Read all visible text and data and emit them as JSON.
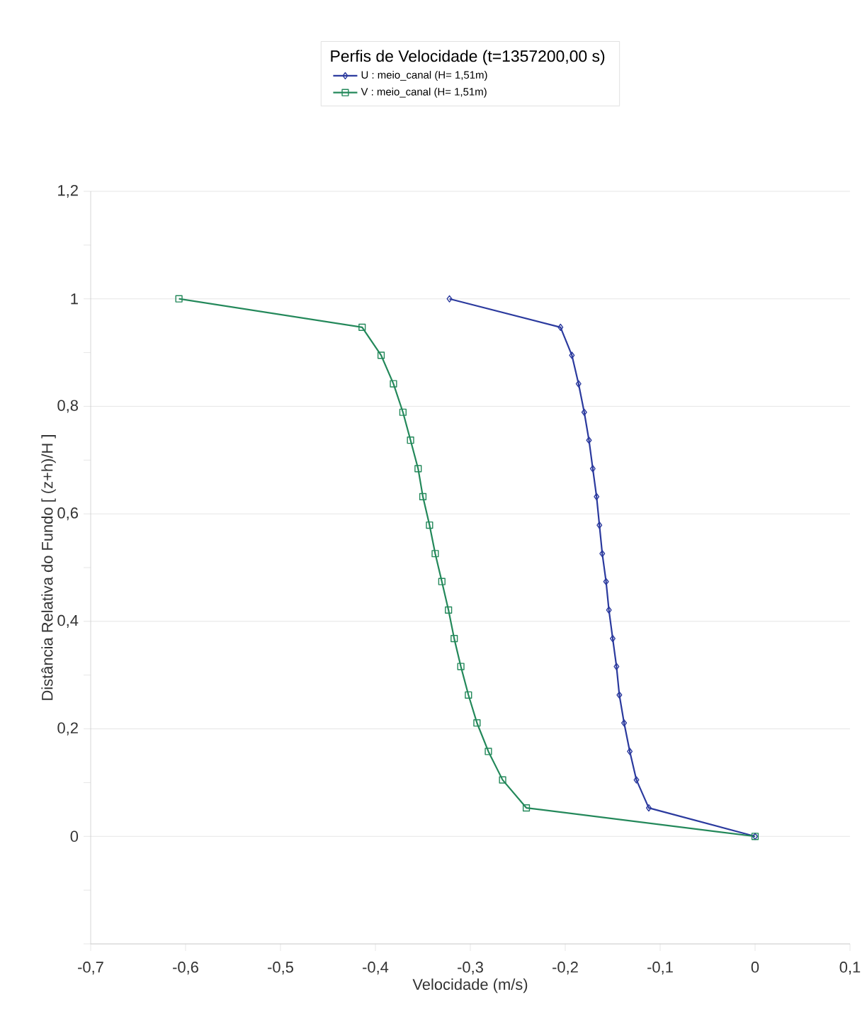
{
  "chart_data": {
    "type": "line",
    "legend_title": "Perfis de Velocidade (t=1357200,00 s)",
    "xlabel": "Velocidade (m/s)",
    "ylabel": "Distância Relativa do Fundo  [ (z+h)/H ]",
    "series": [
      {
        "name": "U : meio_canal (H= 1,51m)",
        "color": "#2b3a9e",
        "marker": "diamond",
        "x": [
          0,
          -0.112,
          -0.125,
          -0.132,
          -0.138,
          -0.143,
          -0.146,
          -0.15,
          -0.154,
          -0.157,
          -0.161,
          -0.164,
          -0.167,
          -0.171,
          -0.175,
          -0.18,
          -0.186,
          -0.193,
          -0.205,
          -0.322
        ],
        "values": [
          0,
          0.053,
          0.105,
          0.158,
          0.211,
          0.263,
          0.316,
          0.368,
          0.421,
          0.474,
          0.526,
          0.579,
          0.632,
          0.684,
          0.737,
          0.789,
          0.842,
          0.895,
          0.947,
          1
        ]
      },
      {
        "name": "V : meio_canal (H= 1,51m)",
        "color": "#23885a",
        "marker": "square",
        "x": [
          0,
          -0.241,
          -0.266,
          -0.281,
          -0.293,
          -0.302,
          -0.31,
          -0.317,
          -0.323,
          -0.33,
          -0.337,
          -0.343,
          -0.35,
          -0.355,
          -0.363,
          -0.371,
          -0.381,
          -0.394,
          -0.414,
          -0.607
        ],
        "values": [
          0,
          0.053,
          0.105,
          0.158,
          0.211,
          0.263,
          0.316,
          0.368,
          0.421,
          0.474,
          0.526,
          0.579,
          0.632,
          0.684,
          0.737,
          0.789,
          0.842,
          0.895,
          0.947,
          1
        ]
      }
    ],
    "xlim": [
      -0.7,
      0.1
    ],
    "xticks": [
      {
        "value": -0.7,
        "label": "-0,7"
      },
      {
        "value": -0.6,
        "label": "-0,6"
      },
      {
        "value": -0.5,
        "label": "-0,5"
      },
      {
        "value": -0.4,
        "label": "-0,4"
      },
      {
        "value": -0.3,
        "label": "-0,3"
      },
      {
        "value": -0.2,
        "label": "-0,2"
      },
      {
        "value": -0.1,
        "label": "-0,1"
      },
      0,
      {
        "value": 0.1,
        "label": "0,1"
      }
    ],
    "ylim": [
      -0.2,
      1.2
    ],
    "yticks": [
      {
        "value": -0.2,
        "label": null
      },
      0,
      {
        "value": 0.2,
        "label": "0,2"
      },
      {
        "value": 0.4,
        "label": "0,4"
      },
      {
        "value": 0.6,
        "label": "0,6"
      },
      {
        "value": 0.8,
        "label": "0,8"
      },
      1,
      {
        "value": 1.2,
        "label": "1,2"
      }
    ],
    "grid": "y",
    "legend": "top",
    "line_style": "solid"
  }
}
